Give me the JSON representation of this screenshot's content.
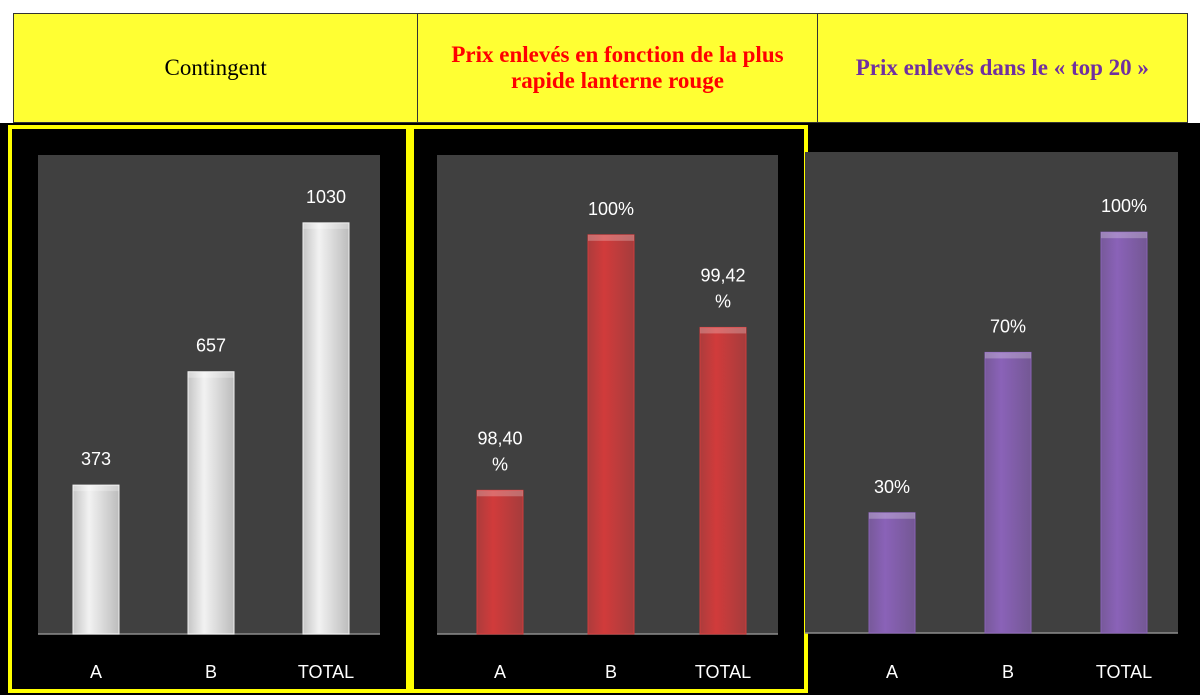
{
  "table": {
    "headers": [
      "Contingent",
      "Prix enlevés en fonction de la plus rapide lanterne rouge",
      "Prix enlevés dans le « top 20 »"
    ]
  },
  "chart_data": [
    {
      "type": "bar",
      "categories": [
        "A",
        "B",
        "TOTAL"
      ],
      "values": [
        373,
        657,
        1030
      ],
      "color": "#f2f2f2",
      "ylim": [
        0,
        1200
      ]
    },
    {
      "type": "bar",
      "categories": [
        "A",
        "B",
        "TOTAL"
      ],
      "values": [
        98.4,
        100,
        99.42
      ],
      "value_labels": [
        "98,40 %",
        "100%",
        "99,42 %"
      ],
      "color": "#d13b3b",
      "ylim": [
        97.5,
        100.5
      ]
    },
    {
      "type": "bar",
      "categories": [
        "A",
        "B",
        "TOTAL"
      ],
      "values": [
        30,
        70,
        100
      ],
      "value_labels": [
        "30%",
        "70%",
        "100%"
      ],
      "color": "#8a62b8",
      "ylim": [
        0,
        120
      ]
    }
  ]
}
